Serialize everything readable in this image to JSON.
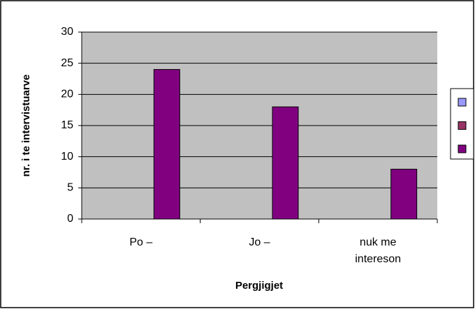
{
  "chart_data": {
    "type": "bar",
    "x_label": "Pergjigjet",
    "y_label": "nr. i te intervistuarve",
    "categories": [
      "Po –",
      "Jo –",
      "nuk me intereson"
    ],
    "series": [
      {
        "color": "#9999ff",
        "values": [
          null,
          null,
          null
        ]
      },
      {
        "color": "#993366",
        "values": [
          null,
          null,
          null
        ]
      },
      {
        "color": "#800080",
        "values": [
          24,
          18,
          8
        ]
      }
    ],
    "ylim": [
      0,
      30
    ],
    "yticks": [
      0,
      5,
      10,
      15,
      20,
      25,
      30
    ],
    "grid": true,
    "legend": "right"
  }
}
